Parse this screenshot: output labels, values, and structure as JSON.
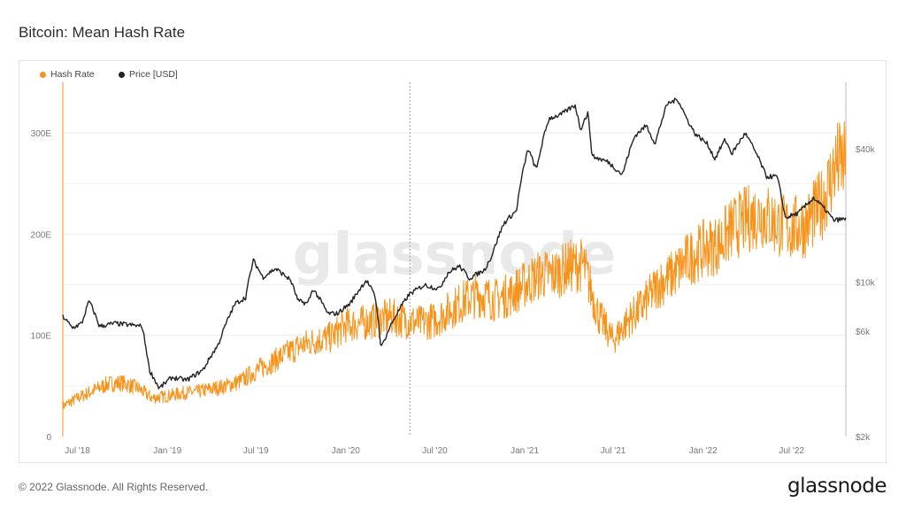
{
  "title": "Bitcoin: Mean Hash Rate",
  "footer": "© 2022 Glassnode. All Rights Reserved.",
  "brand": "glassnode",
  "watermark": "glassnode",
  "colors": {
    "hash_rate": "#f7931a",
    "price": "#222222",
    "grid": "#ececec"
  },
  "chart_data": {
    "type": "line",
    "legend": {
      "placement": "top-left",
      "entries": [
        "Hash Rate",
        "Price [USD]"
      ]
    },
    "x_ticks": [
      "Jul '18",
      "Jan '19",
      "Jul '19",
      "Jan '20",
      "Jul '20",
      "Jan '21",
      "Jul '21",
      "Jan '22",
      "Jul '22"
    ],
    "y_left": {
      "ticks": [
        "0",
        "100E",
        "200E",
        "300E"
      ],
      "range": [
        0,
        350
      ]
    },
    "y_right": {
      "scale": "log",
      "ticks": [
        "$2k",
        "$6k",
        "$10k",
        "$40k"
      ],
      "range": [
        2000,
        80000
      ]
    },
    "vertical_marker": "2020-05-11",
    "series": [
      {
        "name": "Hash Rate",
        "axis": "left",
        "points": [
          [
            "2018-06-01",
            30
          ],
          [
            "2018-07-01",
            38
          ],
          [
            "2018-08-01",
            45
          ],
          [
            "2018-09-01",
            52
          ],
          [
            "2018-10-01",
            53
          ],
          [
            "2018-11-01",
            48
          ],
          [
            "2018-12-01",
            38
          ],
          [
            "2019-01-01",
            40
          ],
          [
            "2019-02-01",
            43
          ],
          [
            "2019-03-01",
            44
          ],
          [
            "2019-04-01",
            47
          ],
          [
            "2019-05-01",
            50
          ],
          [
            "2019-06-01",
            55
          ],
          [
            "2019-07-01",
            65
          ],
          [
            "2019-08-01",
            73
          ],
          [
            "2019-09-01",
            82
          ],
          [
            "2019-10-01",
            90
          ],
          [
            "2019-11-01",
            95
          ],
          [
            "2019-12-01",
            98
          ],
          [
            "2020-01-01",
            110
          ],
          [
            "2020-02-01",
            112
          ],
          [
            "2020-03-01",
            115
          ],
          [
            "2020-04-01",
            118
          ],
          [
            "2020-05-01",
            115
          ],
          [
            "2020-06-01",
            112
          ],
          [
            "2020-07-01",
            115
          ],
          [
            "2020-08-01",
            125
          ],
          [
            "2020-09-01",
            135
          ],
          [
            "2020-10-01",
            140
          ],
          [
            "2020-11-01",
            135
          ],
          [
            "2020-12-01",
            140
          ],
          [
            "2021-01-01",
            150
          ],
          [
            "2021-02-01",
            160
          ],
          [
            "2021-03-01",
            160
          ],
          [
            "2021-04-01",
            168
          ],
          [
            "2021-05-01",
            170
          ],
          [
            "2021-06-01",
            120
          ],
          [
            "2021-07-01",
            95
          ],
          [
            "2021-08-01",
            115
          ],
          [
            "2021-09-01",
            130
          ],
          [
            "2021-10-01",
            150
          ],
          [
            "2021-11-01",
            160
          ],
          [
            "2021-12-01",
            175
          ],
          [
            "2022-01-01",
            185
          ],
          [
            "2022-02-01",
            190
          ],
          [
            "2022-03-01",
            205
          ],
          [
            "2022-04-01",
            215
          ],
          [
            "2022-05-01",
            220
          ],
          [
            "2022-06-01",
            210
          ],
          [
            "2022-07-01",
            205
          ],
          [
            "2022-08-01",
            210
          ],
          [
            "2022-09-01",
            230
          ],
          [
            "2022-10-01",
            270
          ]
        ]
      },
      {
        "name": "Price [USD]",
        "axis": "right",
        "points": [
          [
            "2018-06-01",
            7000
          ],
          [
            "2018-06-20",
            6200
          ],
          [
            "2018-07-10",
            6500
          ],
          [
            "2018-07-25",
            8200
          ],
          [
            "2018-08-15",
            6300
          ],
          [
            "2018-09-15",
            6500
          ],
          [
            "2018-10-15",
            6400
          ],
          [
            "2018-11-10",
            6300
          ],
          [
            "2018-11-25",
            4000
          ],
          [
            "2018-12-15",
            3300
          ],
          [
            "2019-01-10",
            3700
          ],
          [
            "2019-02-10",
            3600
          ],
          [
            "2019-03-15",
            4000
          ],
          [
            "2019-04-15",
            5200
          ],
          [
            "2019-05-20",
            8000
          ],
          [
            "2019-06-10",
            8500
          ],
          [
            "2019-06-26",
            12500
          ],
          [
            "2019-07-15",
            10500
          ],
          [
            "2019-08-10",
            11500
          ],
          [
            "2019-09-10",
            10200
          ],
          [
            "2019-09-25",
            8200
          ],
          [
            "2019-10-15",
            8000
          ],
          [
            "2019-10-26",
            9300
          ],
          [
            "2019-11-25",
            7200
          ],
          [
            "2019-12-15",
            7200
          ],
          [
            "2020-01-10",
            8000
          ],
          [
            "2020-02-12",
            10200
          ],
          [
            "2020-03-01",
            8600
          ],
          [
            "2020-03-13",
            5000
          ],
          [
            "2020-04-10",
            6900
          ],
          [
            "2020-05-10",
            8800
          ],
          [
            "2020-06-10",
            9700
          ],
          [
            "2020-07-10",
            9300
          ],
          [
            "2020-07-28",
            11000
          ],
          [
            "2020-08-20",
            11800
          ],
          [
            "2020-09-10",
            10400
          ],
          [
            "2020-10-10",
            11300
          ],
          [
            "2020-10-25",
            13000
          ],
          [
            "2020-11-20",
            18500
          ],
          [
            "2020-12-15",
            21000
          ],
          [
            "2021-01-08",
            40000
          ],
          [
            "2021-01-25",
            32000
          ],
          [
            "2021-02-20",
            55000
          ],
          [
            "2021-03-15",
            57000
          ],
          [
            "2021-04-14",
            63000
          ],
          [
            "2021-04-25",
            49000
          ],
          [
            "2021-05-10",
            58000
          ],
          [
            "2021-05-19",
            37000
          ],
          [
            "2021-06-20",
            35000
          ],
          [
            "2021-07-20",
            30500
          ],
          [
            "2021-08-15",
            46000
          ],
          [
            "2021-09-07",
            51000
          ],
          [
            "2021-09-25",
            42000
          ],
          [
            "2021-10-20",
            64000
          ],
          [
            "2021-11-10",
            67000
          ],
          [
            "2021-11-28",
            55000
          ],
          [
            "2021-12-15",
            47000
          ],
          [
            "2022-01-10",
            42000
          ],
          [
            "2022-01-25",
            36000
          ],
          [
            "2022-02-15",
            44000
          ],
          [
            "2022-03-01",
            38000
          ],
          [
            "2022-03-28",
            47000
          ],
          [
            "2022-04-15",
            40000
          ],
          [
            "2022-05-10",
            30000
          ],
          [
            "2022-06-01",
            30000
          ],
          [
            "2022-06-18",
            19500
          ],
          [
            "2022-07-15",
            20500
          ],
          [
            "2022-08-15",
            24000
          ],
          [
            "2022-09-10",
            21000
          ],
          [
            "2022-09-25",
            19000
          ],
          [
            "2022-10-10",
            19200
          ],
          [
            "2022-10-20",
            19200
          ]
        ]
      }
    ]
  }
}
